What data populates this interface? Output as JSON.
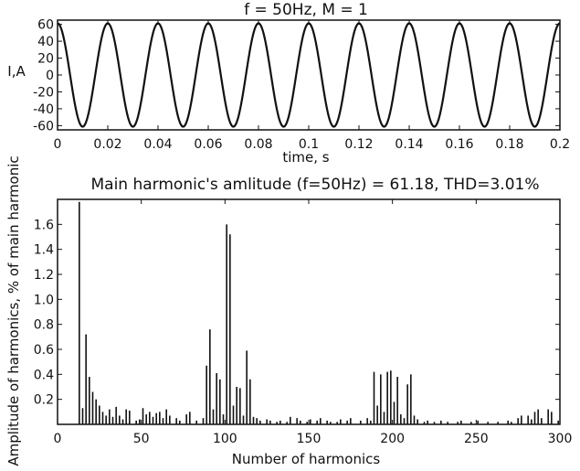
{
  "chart_data": [
    {
      "type": "line",
      "title": "f = 50Hz, M = 1",
      "xlabel": "time, s",
      "ylabel": "I,A",
      "xlim": [
        0,
        0.2
      ],
      "ylim": [
        -65,
        65
      ],
      "x_ticks": [
        "0",
        "0.02",
        "0.04",
        "0.06",
        "0.08",
        "0.1",
        "0.12",
        "0.14",
        "0.16",
        "0.18",
        "0.2"
      ],
      "y_ticks": [
        "60",
        "40",
        "20",
        "0",
        "-20",
        "-40",
        "-60"
      ],
      "y_tick_values": [
        60,
        40,
        20,
        0,
        -20,
        -40,
        -60
      ],
      "series": [
        {
          "frequency_hz": 50,
          "amplitude": 61.18,
          "phase": "cos"
        }
      ],
      "grid": false
    },
    {
      "type": "bar",
      "title": "Main harmonic's amlitude (f=50Hz) = 61.18, THD=3.01%",
      "xlabel": "Number of harmonics",
      "ylabel": "Amplitude of harmonics, % of main harmonic",
      "xlim": [
        0,
        300
      ],
      "ylim": [
        0,
        1.8
      ],
      "x_ticks": [
        "0",
        "50",
        "100",
        "150",
        "200",
        "250",
        "300"
      ],
      "x_tick_values": [
        0,
        50,
        100,
        150,
        200,
        250,
        300
      ],
      "y_ticks": [
        "1.6",
        "1.4",
        "1.2",
        "1.0",
        "0.8",
        "0.6",
        "0.4",
        "0.2"
      ],
      "y_tick_values": [
        1.6,
        1.4,
        1.2,
        1.0,
        0.8,
        0.6,
        0.4,
        0.2
      ],
      "grid": false,
      "harmonics": [
        [
          13,
          1.78
        ],
        [
          15,
          0.13
        ],
        [
          17,
          0.72
        ],
        [
          19,
          0.38
        ],
        [
          21,
          0.26
        ],
        [
          23,
          0.2
        ],
        [
          25,
          0.15
        ],
        [
          27,
          0.1
        ],
        [
          29,
          0.07
        ],
        [
          31,
          0.12
        ],
        [
          33,
          0.06
        ],
        [
          35,
          0.14
        ],
        [
          37,
          0.07
        ],
        [
          39,
          0.04
        ],
        [
          41,
          0.12
        ],
        [
          43,
          0.11
        ],
        [
          47,
          0.03
        ],
        [
          49,
          0.04
        ],
        [
          51,
          0.13
        ],
        [
          53,
          0.08
        ],
        [
          55,
          0.1
        ],
        [
          57,
          0.06
        ],
        [
          59,
          0.09
        ],
        [
          61,
          0.1
        ],
        [
          63,
          0.05
        ],
        [
          65,
          0.12
        ],
        [
          67,
          0.07
        ],
        [
          71,
          0.05
        ],
        [
          73,
          0.03
        ],
        [
          77,
          0.08
        ],
        [
          79,
          0.1
        ],
        [
          83,
          0.03
        ],
        [
          87,
          0.05
        ],
        [
          89,
          0.47
        ],
        [
          91,
          0.76
        ],
        [
          93,
          0.12
        ],
        [
          95,
          0.41
        ],
        [
          97,
          0.36
        ],
        [
          99,
          0.08
        ],
        [
          101,
          1.6
        ],
        [
          103,
          1.52
        ],
        [
          105,
          0.15
        ],
        [
          107,
          0.3
        ],
        [
          109,
          0.29
        ],
        [
          111,
          0.07
        ],
        [
          113,
          0.59
        ],
        [
          115,
          0.36
        ],
        [
          117,
          0.06
        ],
        [
          119,
          0.05
        ],
        [
          121,
          0.03
        ],
        [
          125,
          0.04
        ],
        [
          127,
          0.03
        ],
        [
          131,
          0.02
        ],
        [
          133,
          0.03
        ],
        [
          137,
          0.02
        ],
        [
          139,
          0.06
        ],
        [
          143,
          0.05
        ],
        [
          145,
          0.03
        ],
        [
          149,
          0.02
        ],
        [
          151,
          0.04
        ],
        [
          155,
          0.03
        ],
        [
          157,
          0.05
        ],
        [
          161,
          0.03
        ],
        [
          163,
          0.02
        ],
        [
          167,
          0.02
        ],
        [
          169,
          0.04
        ],
        [
          173,
          0.03
        ],
        [
          175,
          0.05
        ],
        [
          181,
          0.03
        ],
        [
          185,
          0.05
        ],
        [
          187,
          0.03
        ],
        [
          189,
          0.42
        ],
        [
          191,
          0.15
        ],
        [
          193,
          0.4
        ],
        [
          195,
          0.1
        ],
        [
          197,
          0.42
        ],
        [
          199,
          0.43
        ],
        [
          201,
          0.18
        ],
        [
          203,
          0.38
        ],
        [
          205,
          0.08
        ],
        [
          207,
          0.05
        ],
        [
          209,
          0.32
        ],
        [
          211,
          0.4
        ],
        [
          213,
          0.07
        ],
        [
          215,
          0.04
        ],
        [
          219,
          0.02
        ],
        [
          221,
          0.03
        ],
        [
          225,
          0.02
        ],
        [
          229,
          0.03
        ],
        [
          233,
          0.02
        ],
        [
          239,
          0.02
        ],
        [
          241,
          0.03
        ],
        [
          247,
          0.02
        ],
        [
          251,
          0.03
        ],
        [
          257,
          0.02
        ],
        [
          263,
          0.02
        ],
        [
          269,
          0.03
        ],
        [
          271,
          0.02
        ],
        [
          275,
          0.05
        ],
        [
          277,
          0.07
        ],
        [
          281,
          0.07
        ],
        [
          283,
          0.04
        ],
        [
          285,
          0.1
        ],
        [
          287,
          0.12
        ],
        [
          289,
          0.05
        ],
        [
          293,
          0.12
        ],
        [
          295,
          0.1
        ],
        [
          299,
          0.03
        ]
      ]
    }
  ]
}
